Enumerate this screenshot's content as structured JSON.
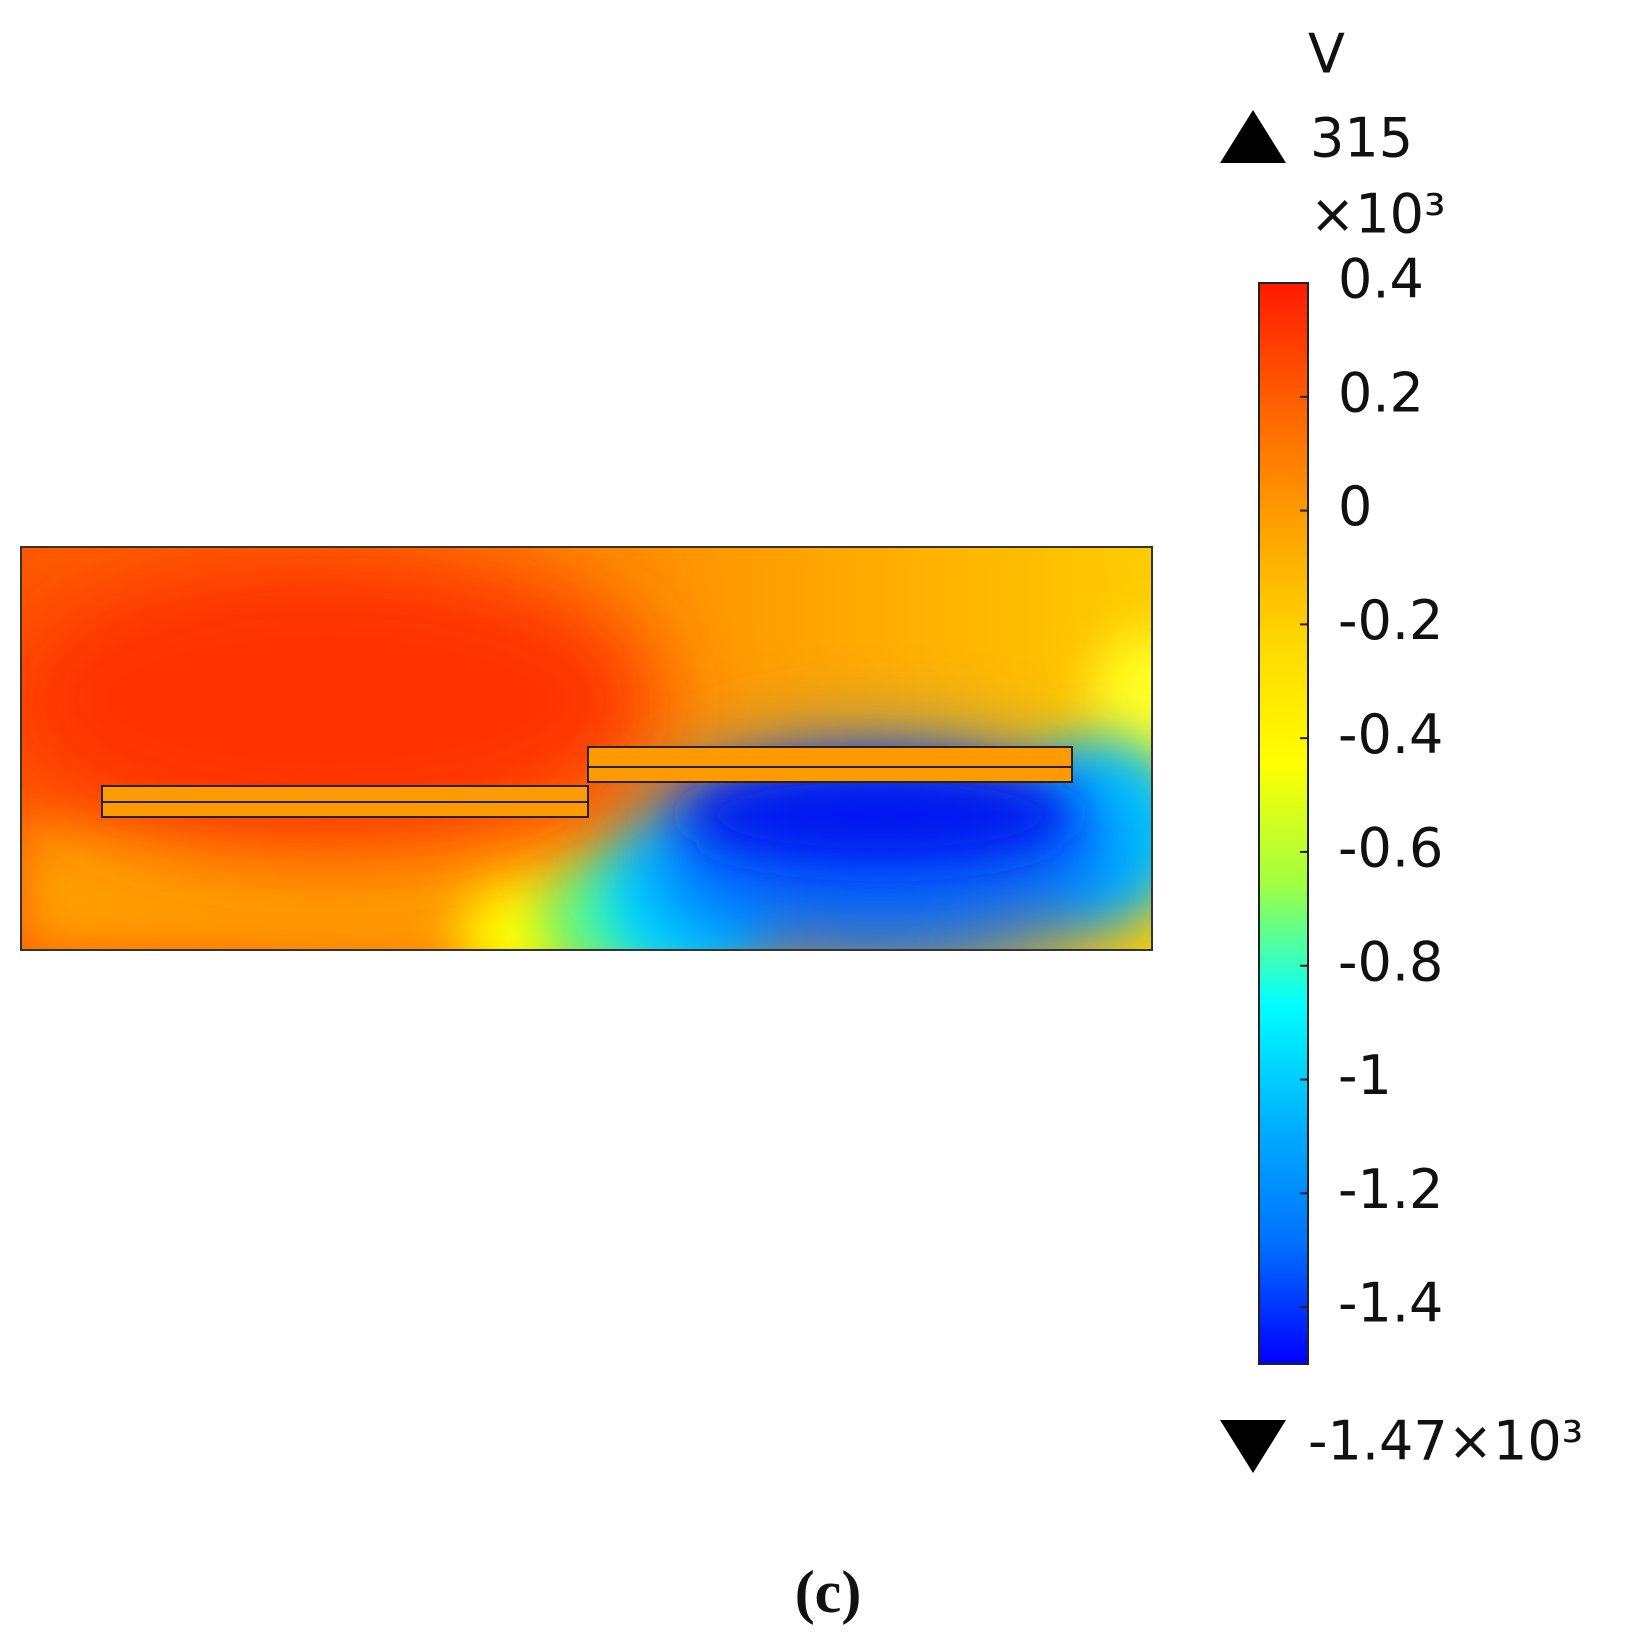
{
  "chart_data": {
    "type": "colorfield",
    "unit": "V",
    "max": 315,
    "scale_label": "×10³",
    "min": {
      "value": -1470,
      "label": "-1.47×10³"
    },
    "clim": [
      -1.5,
      0.4
    ],
    "cticks": [
      0.4,
      0.2,
      0,
      -0.2,
      -0.4,
      -0.6,
      -0.8,
      -1,
      -1.2,
      -1.4
    ],
    "colormap": [
      "#0000ff",
      "#0070ff",
      "#00b0ff",
      "#00ffff",
      "#a0ff40",
      "#ffff00",
      "#ffd800",
      "#ffa000",
      "#ff6000",
      "#ff1a00"
    ],
    "caption": "(c)"
  }
}
